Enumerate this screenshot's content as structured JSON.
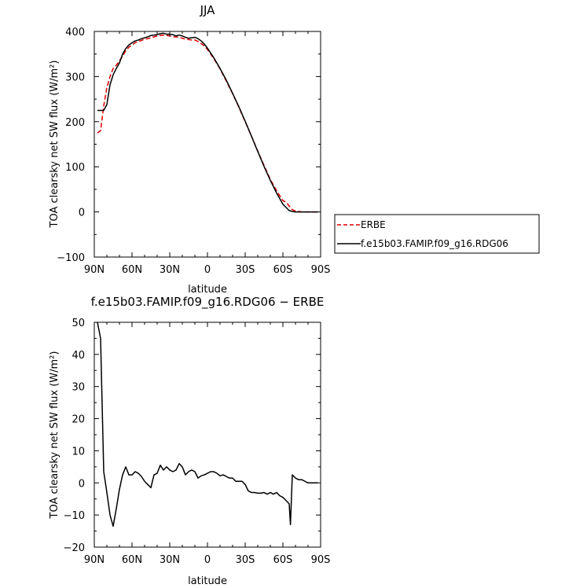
{
  "chart_data": [
    {
      "type": "line",
      "title": "JJA",
      "xlabel": "latitude",
      "ylabel": "TOA clearsky net SW flux (W/m²)",
      "xlim": [
        90,
        -90
      ],
      "ylim": [
        -100,
        400
      ],
      "xticks": [
        90,
        60,
        30,
        0,
        -30,
        -60,
        -90
      ],
      "xtick_labels": [
        "90N",
        "60N",
        "30N",
        "0",
        "30S",
        "60S",
        "90S"
      ],
      "yticks": [
        -100,
        0,
        100,
        200,
        300,
        400
      ],
      "ytick_labels": [
        "−100",
        "0",
        "100",
        "200",
        "300",
        "400"
      ],
      "grid": false,
      "legend_placement": "right, outside plot",
      "series": [
        {
          "name": "ERBE",
          "color": "#dd0000",
          "dash": "dashed",
          "x": [
            87.5,
            85,
            82.5,
            80,
            77.5,
            75,
            72.5,
            70,
            67.5,
            65,
            62.5,
            60,
            57.5,
            55,
            52.5,
            50,
            47.5,
            45,
            42.5,
            40,
            37.5,
            35,
            32.5,
            30,
            27.5,
            25,
            22.5,
            20,
            17.5,
            15,
            12.5,
            10,
            7.5,
            5,
            2.5,
            0,
            -5,
            -10,
            -15,
            -20,
            -25,
            -30,
            -35,
            -40,
            -45,
            -50,
            -55,
            -60,
            -62.5,
            -65,
            -67.5,
            -70,
            -72.5,
            -75,
            -80,
            -85,
            -88
          ],
          "values": [
            175,
            180,
            235,
            275,
            300,
            318,
            325,
            335,
            345,
            357,
            365,
            370,
            375,
            378,
            380,
            383,
            384,
            386,
            388,
            390,
            391,
            392,
            391,
            390,
            388,
            388,
            387,
            385,
            383,
            382,
            381,
            381,
            378,
            373,
            368,
            360,
            340,
            317,
            290,
            262,
            232,
            200,
            168,
            135,
            103,
            72,
            47,
            25,
            22,
            13,
            5,
            2,
            1,
            0,
            0,
            0,
            0
          ]
        },
        {
          "name": "f.e15b03.FAMIP.f09_g16.RDG06",
          "color": "#000000",
          "dash": "solid",
          "x": [
            87.5,
            85,
            82.5,
            80,
            77.5,
            75,
            72.5,
            70,
            67.5,
            65,
            62.5,
            60,
            57.5,
            55,
            52.5,
            50,
            47.5,
            45,
            42.5,
            40,
            37.5,
            35,
            32.5,
            30,
            27.5,
            25,
            22.5,
            20,
            17.5,
            15,
            12.5,
            10,
            7.5,
            5,
            2.5,
            0,
            -5,
            -10,
            -15,
            -20,
            -25,
            -30,
            -35,
            -40,
            -45,
            -50,
            -55,
            -60,
            -62.5,
            -65,
            -67.5,
            -70,
            -72.5,
            -75,
            -80,
            -85,
            -88
          ],
          "values": [
            225,
            225,
            225,
            238,
            282,
            304,
            318,
            330,
            350,
            362,
            370,
            375,
            379,
            381,
            384,
            386,
            388,
            391,
            392,
            393,
            395,
            396,
            394,
            394,
            393,
            390,
            392,
            390,
            387,
            385,
            386,
            387,
            384,
            379,
            372,
            363,
            342,
            318,
            292,
            263,
            233,
            201,
            168,
            134,
            101,
            70,
            42,
            17,
            10,
            3,
            1,
            0,
            0,
            0,
            0,
            0,
            0
          ]
        }
      ]
    },
    {
      "type": "line",
      "title": "f.e15b03.FAMIP.f09_g16.RDG06 − ERBE",
      "xlabel": "latitude",
      "ylabel": "TOA clearsky net SW flux (W/m²)",
      "xlim": [
        90,
        -90
      ],
      "ylim": [
        -20,
        50
      ],
      "xticks": [
        90,
        60,
        30,
        0,
        -30,
        -60,
        -90
      ],
      "xtick_labels": [
        "90N",
        "60N",
        "30N",
        "0",
        "30S",
        "60S",
        "90S"
      ],
      "yticks": [
        -20,
        -10,
        0,
        10,
        20,
        30,
        40,
        50
      ],
      "ytick_labels": [
        "−20",
        "−10",
        "0",
        "10",
        "20",
        "30",
        "40",
        "50"
      ],
      "grid": false,
      "series": [
        {
          "name": "",
          "color": "#000000",
          "dash": "solid",
          "x": [
            87.5,
            85,
            82.5,
            80,
            77.5,
            75,
            72.5,
            70,
            67.5,
            65,
            62.5,
            60,
            57.5,
            55,
            52.5,
            50,
            47.5,
            45,
            42.5,
            40,
            37.5,
            35,
            32.5,
            30,
            27.5,
            25,
            22.5,
            20,
            17.5,
            15,
            12.5,
            10,
            7.5,
            5,
            2.5,
            0,
            -2.5,
            -5,
            -7.5,
            -10,
            -12.5,
            -15,
            -17.5,
            -20,
            -22.5,
            -25,
            -27.5,
            -30,
            -32.5,
            -35,
            -37.5,
            -40,
            -42.5,
            -45,
            -47.5,
            -50,
            -52.5,
            -55,
            -57.5,
            -60,
            -62.5,
            -65,
            -66,
            -67.5,
            -70,
            -72.5,
            -75,
            -77.5,
            -80,
            -85,
            -88
          ],
          "values": [
            50,
            45,
            3.5,
            -3,
            -10,
            -13.5,
            -8,
            -2,
            2.5,
            5,
            2.5,
            2.5,
            3.5,
            3,
            2,
            0.5,
            -0.5,
            -1.5,
            2.5,
            3,
            5.5,
            4,
            5,
            4,
            3.5,
            4,
            6,
            5,
            2.5,
            3.5,
            4,
            3.5,
            1.5,
            2.2,
            2.5,
            3,
            3.5,
            3.5,
            3,
            2.2,
            2.5,
            2,
            1.5,
            1.5,
            0.5,
            0.5,
            0.5,
            -0.5,
            -2.5,
            -3,
            -3,
            -3.2,
            -3.2,
            -3,
            -3.5,
            -3,
            -3.5,
            -3,
            -4,
            -4.5,
            -5.5,
            -6.5,
            -13,
            2.5,
            1.5,
            1,
            1,
            0.5,
            0,
            0,
            0
          ]
        }
      ]
    }
  ]
}
